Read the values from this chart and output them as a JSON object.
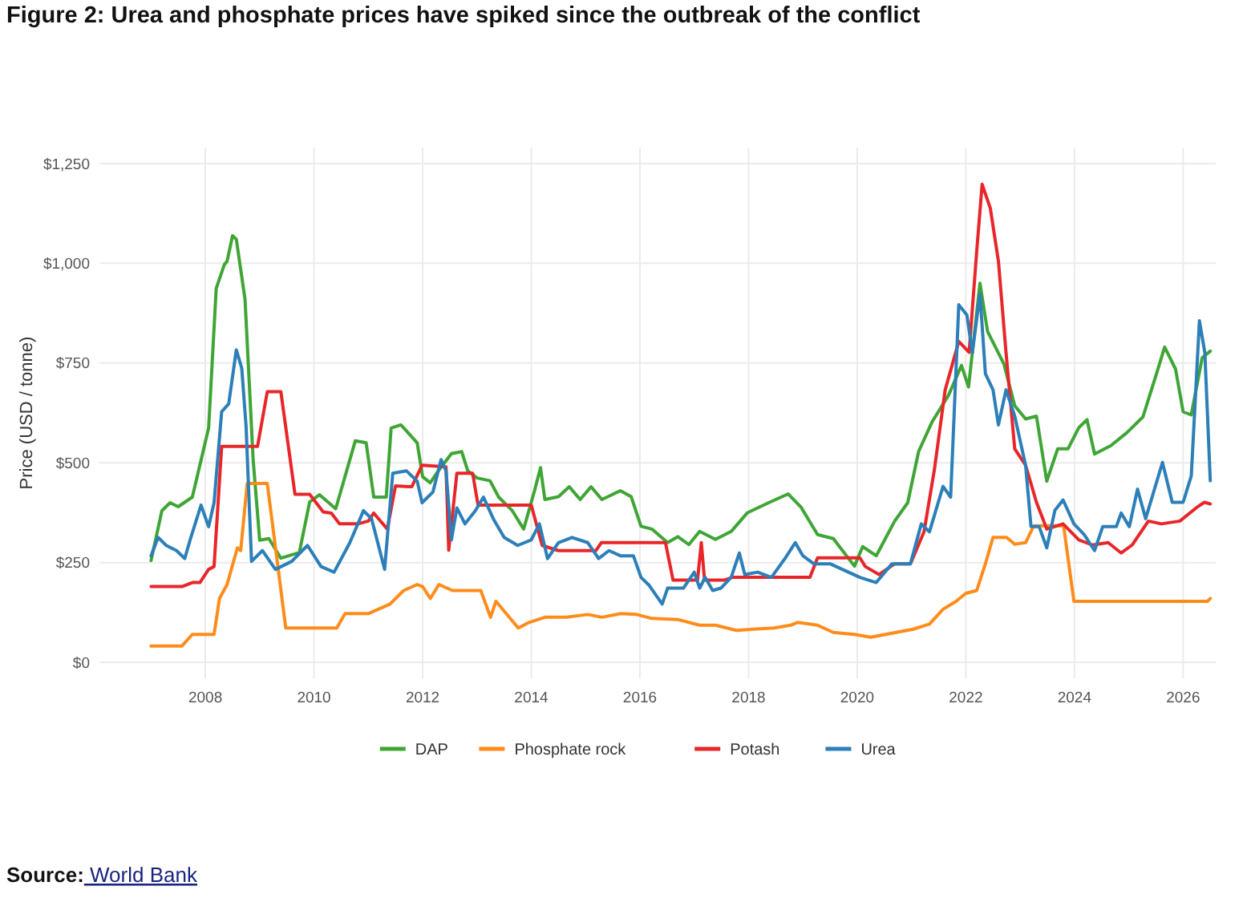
{
  "chart_data": {
    "type": "line",
    "title": "Figure 2: Urea and phosphate prices have spiked since the outbreak of the conflict",
    "ylabel": "Price (USD / tonne)",
    "annotations": [
      "Source: World Bank"
    ],
    "xlim": [
      2006.05,
      2026.6
    ],
    "xticks": [
      2008,
      2010,
      2012,
      2014,
      2016,
      2018,
      2020,
      2022,
      2024,
      2026
    ],
    "ylim": [
      -40,
      1290
    ],
    "yticks": [
      {
        "value": 0,
        "label": "$0"
      },
      {
        "value": 250,
        "label": "$250"
      },
      {
        "value": 500,
        "label": "$500"
      },
      {
        "value": 750,
        "label": "$750"
      },
      {
        "value": 1000,
        "label": "$1,000"
      },
      {
        "value": 1250,
        "label": "$1,250"
      }
    ],
    "grid": true,
    "legend": "bottom",
    "line_style": "solid",
    "series": [
      {
        "name": "DAP",
        "color": "#3fa535",
        "x": [
          2007.0,
          2007.2,
          2007.35,
          2007.5,
          2007.76,
          2008.06,
          2008.2,
          2008.35,
          2008.4,
          2008.5,
          2008.57,
          2008.73,
          2008.88,
          2009.0,
          2009.17,
          2009.39,
          2009.73,
          2009.92,
          2010.1,
          2010.4,
          2010.76,
          2010.96,
          2011.1,
          2011.33,
          2011.42,
          2011.6,
          2011.9,
          2012.0,
          2012.14,
          2012.29,
          2012.53,
          2012.72,
          2012.83,
          2013.0,
          2013.24,
          2013.4,
          2013.65,
          2013.86,
          2014.06,
          2014.17,
          2014.25,
          2014.5,
          2014.7,
          2014.9,
          2015.1,
          2015.3,
          2015.64,
          2015.84,
          2016.02,
          2016.22,
          2016.51,
          2016.7,
          2016.9,
          2017.1,
          2017.39,
          2017.68,
          2017.98,
          2018.37,
          2018.73,
          2018.97,
          2019.27,
          2019.56,
          2019.95,
          2020.1,
          2020.35,
          2020.69,
          2020.93,
          2021.13,
          2021.38,
          2021.68,
          2021.92,
          2022.05,
          2022.26,
          2022.4,
          2022.7,
          2022.9,
          2023.1,
          2023.3,
          2023.49,
          2023.69,
          2023.88,
          2024.08,
          2024.23,
          2024.37,
          2024.67,
          2024.96,
          2025.26,
          2025.51,
          2025.66,
          2025.86,
          2026.0,
          2026.15,
          2026.35,
          2026.5
        ],
        "values": [
          255,
          380,
          400,
          390,
          414,
          587,
          937,
          997,
          1005,
          1069,
          1060,
          910,
          507,
          306,
          310,
          261,
          275,
          402,
          420,
          385,
          555,
          550,
          414,
          414,
          587,
          595,
          550,
          465,
          450,
          480,
          523,
          528,
          480,
          462,
          455,
          414,
          380,
          334,
          430,
          488,
          408,
          415,
          440,
          408,
          440,
          408,
          430,
          415,
          341,
          334,
          300,
          315,
          295,
          328,
          308,
          328,
          375,
          400,
          422,
          388,
          320,
          310,
          241,
          290,
          267,
          354,
          400,
          528,
          603,
          669,
          744,
          690,
          950,
          829,
          748,
          643,
          610,
          617,
          454,
          535,
          535,
          588,
          608,
          522,
          543,
          575,
          615,
          723,
          790,
          735,
          628,
          620,
          763,
          780
        ]
      },
      {
        "name": "Phosphate rock",
        "color": "#ff8c1a",
        "x": [
          2007.0,
          2007.57,
          2007.76,
          2008.16,
          2008.26,
          2008.4,
          2008.59,
          2008.65,
          2008.77,
          2009.14,
          2009.48,
          2010.42,
          2010.57,
          2011.0,
          2011.4,
          2011.65,
          2011.9,
          2012.0,
          2012.14,
          2012.3,
          2012.55,
          2013.07,
          2013.25,
          2013.35,
          2013.76,
          2013.96,
          2014.25,
          2014.65,
          2015.04,
          2015.3,
          2015.64,
          2015.94,
          2016.22,
          2016.71,
          2017.1,
          2017.39,
          2017.78,
          2018.08,
          2018.47,
          2018.77,
          2018.9,
          2019.27,
          2019.56,
          2019.95,
          2020.25,
          2020.64,
          2021.03,
          2021.33,
          2021.58,
          2021.82,
          2022.0,
          2022.2,
          2022.36,
          2022.5,
          2022.75,
          2022.9,
          2023.1,
          2023.25,
          2023.8,
          2023.99,
          2026.45,
          2026.5
        ],
        "values": [
          41,
          41,
          70,
          70,
          160,
          195,
          287,
          280,
          448,
          448,
          86,
          86,
          122,
          122,
          146,
          180,
          195,
          190,
          160,
          195,
          180,
          180,
          113,
          153,
          86,
          100,
          113,
          113,
          120,
          113,
          122,
          120,
          110,
          107,
          93,
          93,
          80,
          83,
          86,
          93,
          100,
          93,
          75,
          70,
          63,
          73,
          83,
          96,
          133,
          153,
          173,
          180,
          247,
          313,
          313,
          296,
          300,
          342,
          342,
          153,
          153,
          160
        ]
      },
      {
        "name": "Potash",
        "color": "#e8262a",
        "x": [
          2007.0,
          2007.57,
          2007.76,
          2007.9,
          2008.06,
          2008.16,
          2008.3,
          2008.96,
          2009.14,
          2009.39,
          2009.65,
          2009.92,
          2010.17,
          2010.32,
          2010.47,
          2010.81,
          2011.0,
          2011.1,
          2011.35,
          2011.5,
          2011.8,
          2011.99,
          2012.43,
          2012.48,
          2012.63,
          2012.92,
          2013.02,
          2014.0,
          2014.2,
          2014.5,
          2015.19,
          2015.29,
          2016.47,
          2016.61,
          2017.06,
          2017.13,
          2017.19,
          2017.55,
          2017.7,
          2019.13,
          2019.27,
          2020.05,
          2020.15,
          2020.4,
          2020.69,
          2020.98,
          2021.23,
          2021.42,
          2021.62,
          2021.87,
          2022.06,
          2022.2,
          2022.3,
          2022.45,
          2022.6,
          2022.74,
          2022.9,
          2023.1,
          2023.3,
          2023.49,
          2023.79,
          2024.08,
          2024.33,
          2024.62,
          2024.86,
          2025.06,
          2025.36,
          2025.6,
          2025.94,
          2026.24,
          2026.39,
          2026.5
        ],
        "values": [
          190,
          190,
          200,
          200,
          233,
          240,
          541,
          541,
          678,
          678,
          421,
          421,
          377,
          374,
          347,
          347,
          354,
          374,
          334,
          442,
          440,
          494,
          490,
          281,
          474,
          474,
          394,
          394,
          293,
          280,
          280,
          300,
          300,
          206,
          206,
          300,
          206,
          206,
          213,
          213,
          262,
          262,
          240,
          220,
          247,
          247,
          327,
          482,
          683,
          804,
          777,
          1030,
          1198,
          1138,
          1005,
          776,
          535,
          494,
          401,
          334,
          347,
          307,
          294,
          300,
          274,
          294,
          354,
          347,
          354,
          387,
          401,
          397
        ]
      },
      {
        "name": "Urea",
        "color": "#2c7fb8",
        "x": [
          2007.0,
          2007.13,
          2007.28,
          2007.47,
          2007.62,
          2007.72,
          2007.92,
          2008.06,
          2008.16,
          2008.3,
          2008.43,
          2008.57,
          2008.67,
          2008.75,
          2008.85,
          2009.05,
          2009.29,
          2009.59,
          2009.88,
          2010.13,
          2010.37,
          2010.66,
          2010.91,
          2011.06,
          2011.3,
          2011.45,
          2011.7,
          2011.9,
          2011.99,
          2012.19,
          2012.34,
          2012.43,
          2012.53,
          2012.63,
          2012.78,
          2012.97,
          2013.12,
          2013.3,
          2013.5,
          2013.75,
          2014.0,
          2014.15,
          2014.3,
          2014.5,
          2014.75,
          2015.04,
          2015.24,
          2015.43,
          2015.64,
          2015.88,
          2016.02,
          2016.17,
          2016.41,
          2016.51,
          2016.8,
          2017.0,
          2017.1,
          2017.2,
          2017.34,
          2017.49,
          2017.68,
          2017.83,
          2017.93,
          2018.17,
          2018.42,
          2018.67,
          2018.86,
          2019.0,
          2019.2,
          2019.5,
          2020.05,
          2020.35,
          2020.64,
          2020.98,
          2021.18,
          2021.33,
          2021.58,
          2021.72,
          2021.87,
          2022.02,
          2022.12,
          2022.26,
          2022.36,
          2022.5,
          2022.6,
          2022.74,
          2022.9,
          2023.1,
          2023.2,
          2023.35,
          2023.49,
          2023.64,
          2023.79,
          2023.99,
          2024.18,
          2024.37,
          2024.52,
          2024.77,
          2024.86,
          2025.01,
          2025.16,
          2025.31,
          2025.62,
          2025.8,
          2026.0,
          2026.15,
          2026.3,
          2026.4,
          2026.5
        ],
        "values": [
          267,
          313,
          293,
          280,
          260,
          307,
          394,
          340,
          400,
          628,
          648,
          783,
          737,
          590,
          253,
          280,
          233,
          253,
          293,
          240,
          226,
          300,
          380,
          360,
          233,
          474,
          480,
          454,
          400,
          427,
          508,
          480,
          307,
          387,
          347,
          380,
          414,
          360,
          313,
          293,
          307,
          347,
          260,
          300,
          313,
          300,
          260,
          280,
          267,
          267,
          213,
          193,
          146,
          186,
          186,
          226,
          186,
          213,
          180,
          186,
          213,
          274,
          220,
          226,
          213,
          260,
          300,
          267,
          247,
          247,
          213,
          200,
          247,
          247,
          347,
          327,
          441,
          414,
          896,
          870,
          776,
          923,
          723,
          683,
          595,
          683,
          617,
          494,
          340,
          340,
          287,
          381,
          407,
          347,
          320,
          280,
          340,
          340,
          374,
          340,
          434,
          360,
          501,
          401,
          401,
          467,
          856,
          776,
          455
        ]
      }
    ]
  }
}
